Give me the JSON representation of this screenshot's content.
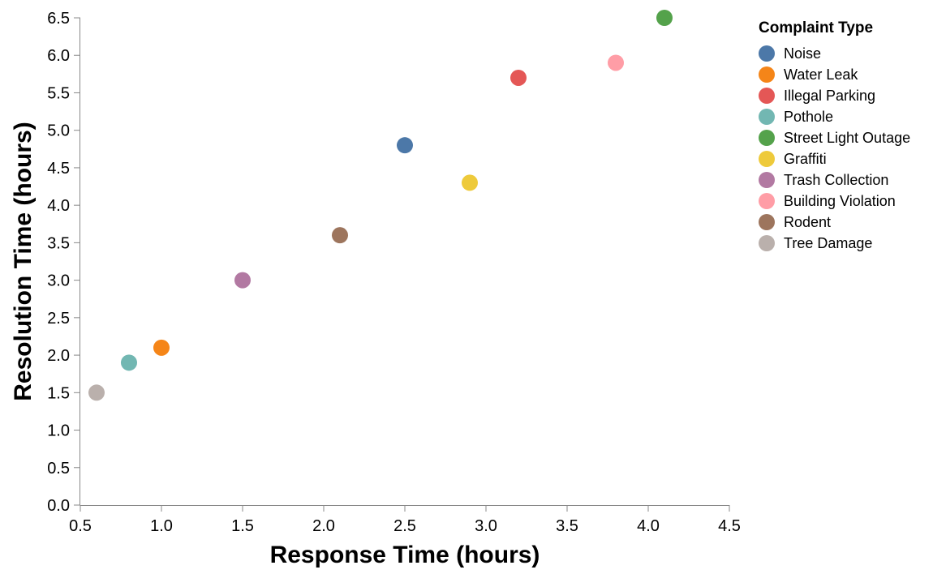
{
  "chart_data": {
    "type": "scatter",
    "xlabel": "Response Time (hours)",
    "ylabel": "Resolution Time (hours)",
    "xlim": [
      0.5,
      4.5
    ],
    "ylim": [
      0.0,
      6.5
    ],
    "x_ticks": [
      "0.5",
      "1.0",
      "1.5",
      "2.0",
      "2.5",
      "3.0",
      "3.5",
      "4.0",
      "4.5"
    ],
    "y_ticks": [
      "0.0",
      "0.5",
      "1.0",
      "1.5",
      "2.0",
      "2.5",
      "3.0",
      "3.5",
      "4.0",
      "4.5",
      "5.0",
      "5.5",
      "6.0",
      "6.5"
    ],
    "grid": false,
    "legend_title": "Complaint Type",
    "legend_position": "right",
    "series": [
      {
        "name": "Noise",
        "color": "#4c78a8",
        "x": 2.5,
        "y": 4.8
      },
      {
        "name": "Water Leak",
        "color": "#f58518",
        "x": 1.0,
        "y": 2.1
      },
      {
        "name": "Illegal Parking",
        "color": "#e45756",
        "x": 3.2,
        "y": 5.7
      },
      {
        "name": "Pothole",
        "color": "#72b7b2",
        "x": 0.8,
        "y": 1.9
      },
      {
        "name": "Street Light Outage",
        "color": "#54a24b",
        "x": 4.1,
        "y": 6.5
      },
      {
        "name": "Graffiti",
        "color": "#eeca3b",
        "x": 2.9,
        "y": 4.3
      },
      {
        "name": "Trash Collection",
        "color": "#b279a2",
        "x": 1.5,
        "y": 3.0
      },
      {
        "name": "Building Violation",
        "color": "#ff9da6",
        "x": 3.8,
        "y": 5.9
      },
      {
        "name": "Rodent",
        "color": "#9d755d",
        "x": 2.1,
        "y": 3.6
      },
      {
        "name": "Tree Damage",
        "color": "#bab0ac",
        "x": 0.6,
        "y": 1.5
      }
    ]
  }
}
